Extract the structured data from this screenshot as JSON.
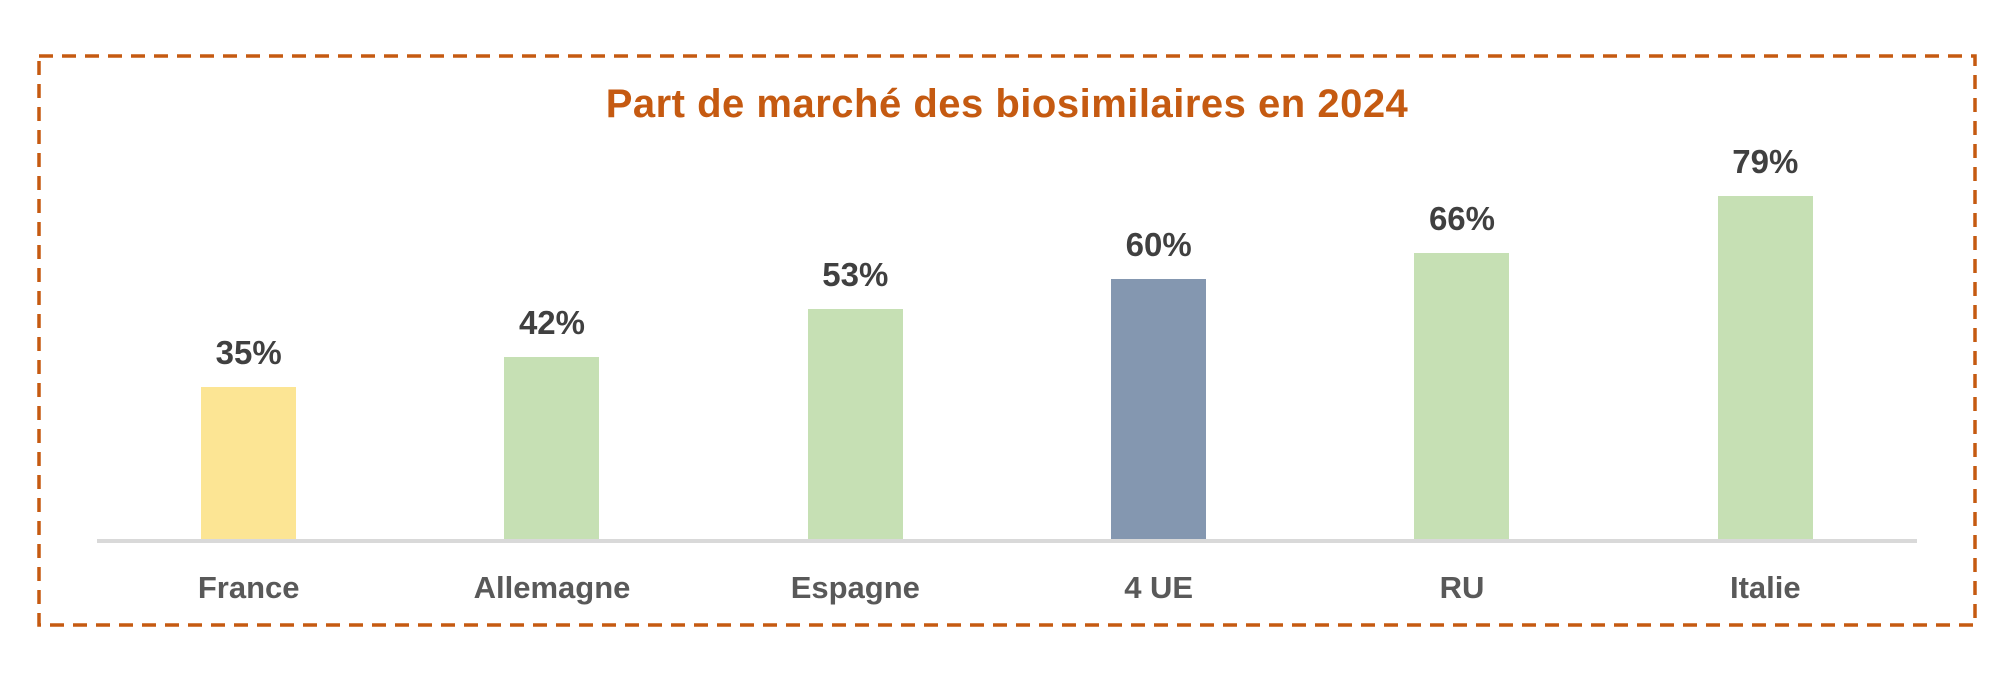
{
  "frame": {
    "border_color": "#C55A11",
    "border_style": "dashed"
  },
  "chart_data": {
    "type": "bar",
    "title": "Part de marché des biosimilaires en 2024",
    "title_color": "#C55A11",
    "categories": [
      "France",
      "Allemagne",
      "Espagne",
      "4 UE",
      "RU",
      "Italie"
    ],
    "values": [
      35,
      42,
      53,
      60,
      66,
      79
    ],
    "value_labels": [
      "35%",
      "42%",
      "53%",
      "60%",
      "66%",
      "79%"
    ],
    "bar_colors": [
      "#FCE594",
      "#C6E0B4",
      "#C6E0B4",
      "#8497B0",
      "#C6E0B4",
      "#C6E0B4"
    ],
    "xlabel": "",
    "ylabel": "",
    "ylim": [
      0,
      100
    ],
    "grid": false,
    "legend": "none",
    "axis_line_color": "#D9D9D9",
    "value_label_color": "#404040",
    "category_label_color": "#595959"
  }
}
